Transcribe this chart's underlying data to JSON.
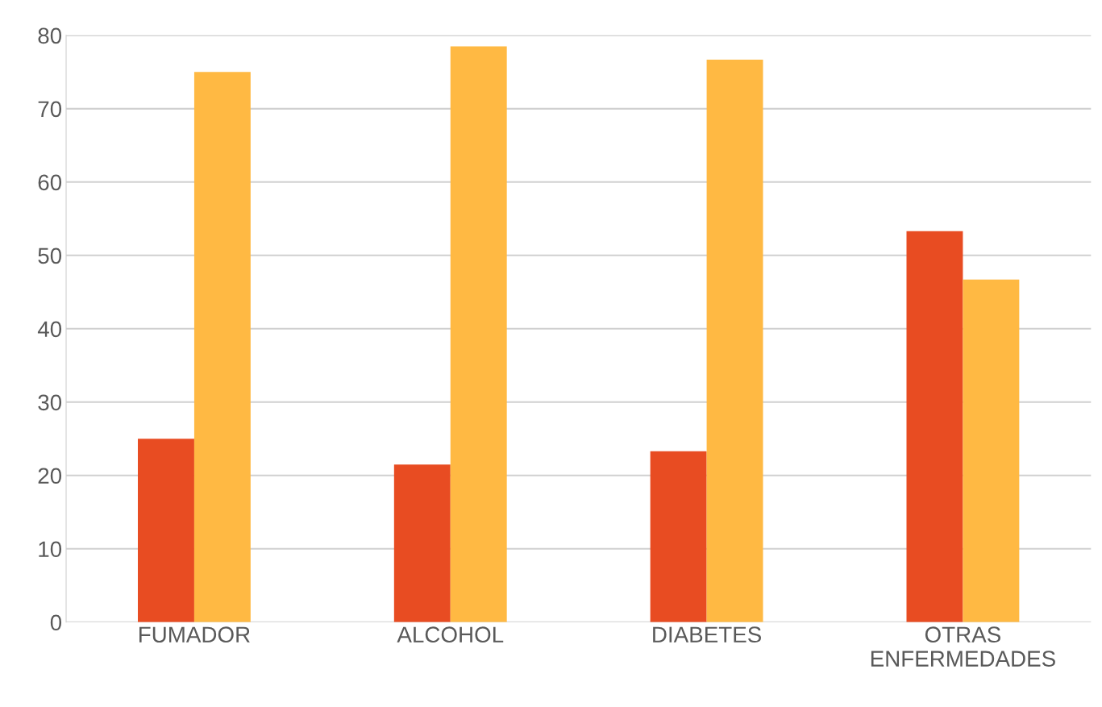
{
  "chart_data": {
    "type": "bar",
    "categories": [
      "FUMADOR",
      "ALCOHOL",
      "DIABETES",
      "OTRAS\nENFERMEDADES"
    ],
    "series": [
      {
        "color": "#e84c22",
        "values": [
          25,
          21.5,
          23.3,
          53.3
        ]
      },
      {
        "color": "#ffb943",
        "values": [
          75,
          78.5,
          76.7,
          46.7
        ]
      }
    ],
    "ylim": [
      0,
      80
    ],
    "yticks": [
      0,
      10,
      20,
      30,
      40,
      50,
      60,
      70,
      80
    ],
    "grid": "y"
  }
}
